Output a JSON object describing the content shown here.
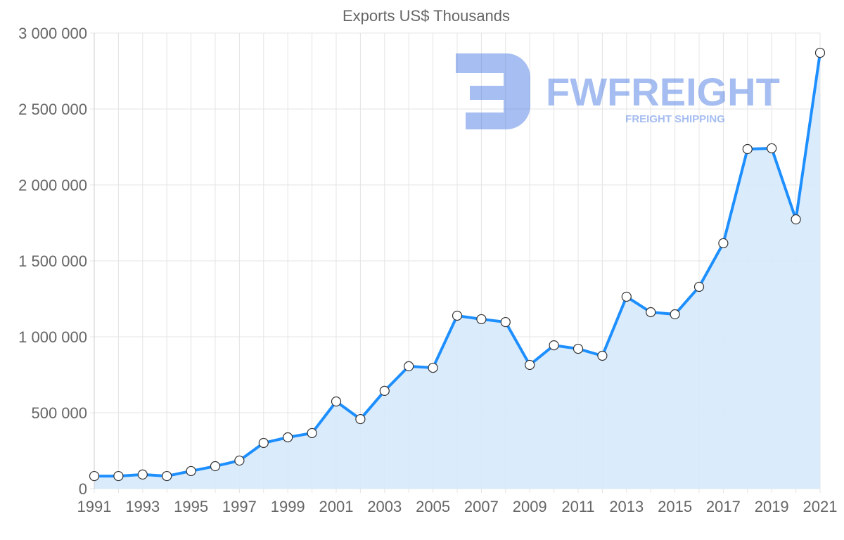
{
  "chart_data": {
    "type": "area",
    "title": "Exports US$ Thousands",
    "xlabel": "",
    "ylabel": "",
    "ylim": [
      0,
      3000000
    ],
    "grid": true,
    "x": [
      1991,
      1992,
      1993,
      1994,
      1995,
      1996,
      1997,
      1998,
      1999,
      2000,
      2001,
      2002,
      2003,
      2004,
      2005,
      2006,
      2007,
      2008,
      2009,
      2010,
      2011,
      2012,
      2013,
      2014,
      2015,
      2016,
      2017,
      2018,
      2019,
      2020,
      2021
    ],
    "series": [
      {
        "name": "Exports US$ Thousands",
        "values": [
          83000,
          83000,
          93000,
          83000,
          116000,
          148000,
          185000,
          301000,
          338000,
          366000,
          574000,
          458000,
          644000,
          806000,
          796000,
          1139000,
          1116000,
          1097000,
          815000,
          944000,
          921000,
          875000,
          1264000,
          1162000,
          1148000,
          1329000,
          1616000,
          2236000,
          2241000,
          1773000,
          2870000
        ]
      }
    ],
    "y_ticks": [
      "0",
      "500 000",
      "1 000 000",
      "1 500 000",
      "2 000 000",
      "2 500 000",
      "3 000 000"
    ],
    "x_tick_labels": [
      "1991",
      "1993",
      "1995",
      "1997",
      "1999",
      "2001",
      "2003",
      "2005",
      "2007",
      "2009",
      "2011",
      "2013",
      "2015",
      "2017",
      "2019",
      "2021"
    ],
    "colors": {
      "line": "#1e8fff",
      "fill": "#d6eafc",
      "grid": "#e4e4e4",
      "text": "#666666"
    }
  },
  "watermark": {
    "brand": "FWFREIGHT",
    "tagline": "FREIGHT SHIPPING"
  }
}
